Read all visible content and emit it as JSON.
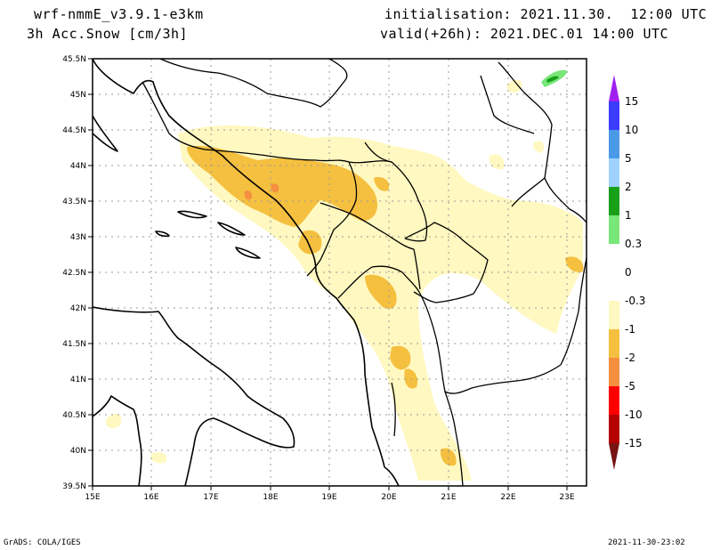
{
  "header": {
    "model": "wrf-nmmE_v3.9.1-e3km",
    "variable": "3h Acc.Snow [cm/3h]",
    "init": "initialisation: 2021.11.30.  12:00 UTC",
    "valid": "valid(+26h): 2021.DEC.01 14:00 UTC"
  },
  "map": {
    "lat_labels": [
      "45.5N",
      "45N",
      "44.5N",
      "44N",
      "43.5N",
      "43N",
      "42.5N",
      "42N",
      "41.5N",
      "41N",
      "40.5N",
      "40N",
      "39.5N"
    ],
    "lon_labels": [
      "15E",
      "16E",
      "17E",
      "18E",
      "19E",
      "20E",
      "21E",
      "22E",
      "23E"
    ],
    "lat_range": [
      39.5,
      45.5
    ],
    "lon_range": [
      15,
      23.3
    ]
  },
  "legend": {
    "levels": [
      "15",
      "10",
      "5",
      "2",
      "1",
      "0.3",
      "0",
      "-0.3",
      "-1",
      "-2",
      "-5",
      "-10",
      "-15"
    ],
    "colors": {
      "top_arrow": "#a020f0",
      "c15": "#3c3cff",
      "c10": "#4a9ae8",
      "c5": "#a0d2ff",
      "c2": "#18a018",
      "c1": "#78e678",
      "neutral": "#ffffff",
      "c_m03": "#fff8c0",
      "c_m1": "#f5c040",
      "c_m2": "#f59040",
      "c_m5": "#ff0000",
      "c_m10": "#b40000",
      "bottom_arrow": "#781414"
    }
  },
  "footer": {
    "left": "GrADS: COLA/IGES",
    "right": "2021-11-30-23:02"
  }
}
